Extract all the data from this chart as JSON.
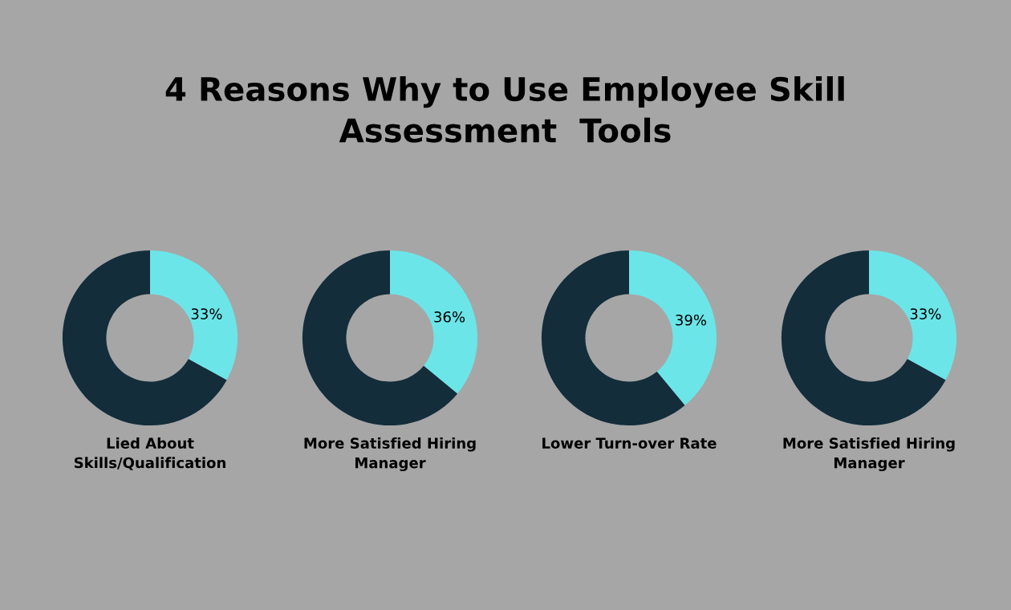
{
  "chart_data": [
    {
      "type": "donut",
      "title": "4 Reasons Why to Use Employee Skill\nAssessment  Tools",
      "xlabel": "Lied About\nSkills/Qualification",
      "categories": [
        null,
        null
      ],
      "values": [
        33,
        67
      ],
      "colors": [
        "#6ce5e8",
        "#132d3a"
      ],
      "value_labels": [
        "33%",
        null
      ]
    },
    {
      "type": "donut",
      "xlabel": "More Satisfied Hiring\nManager",
      "categories": [
        null,
        null
      ],
      "values": [
        36,
        64
      ],
      "colors": [
        "#6ce5e8",
        "#132d3a"
      ],
      "value_labels": [
        "36%",
        null
      ]
    },
    {
      "type": "donut",
      "xlabel": "Lower Turn-over Rate",
      "categories": [
        null,
        null
      ],
      "values": [
        39,
        61
      ],
      "colors": [
        "#6ce5e8",
        "#132d3a"
      ],
      "value_labels": [
        "39%",
        null
      ]
    },
    {
      "type": "donut",
      "xlabel": "More Satisfied Hiring\nManager",
      "categories": [
        null,
        null
      ],
      "values": [
        33,
        67
      ],
      "colors": [
        "#6ce5e8",
        "#132d3a"
      ],
      "value_labels": [
        "33%",
        null
      ]
    }
  ]
}
